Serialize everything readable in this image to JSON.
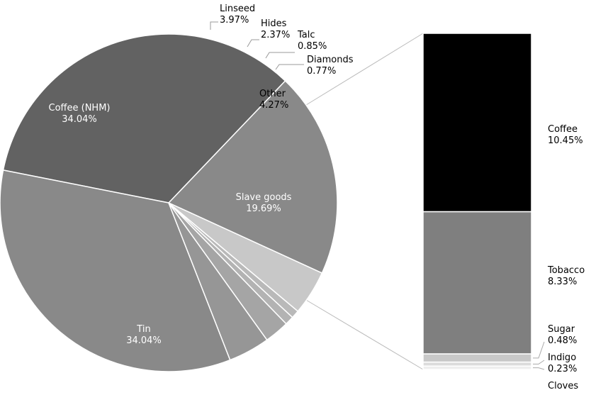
{
  "chart_data": [
    {
      "type": "pie",
      "colors": [
        "#6b6b6b",
        "#898989",
        "#ffffff"
      ],
      "slices": [
        {
          "label": "Slave goods",
          "value": 19.69,
          "percent_label": "19.69%",
          "color": "#898989",
          "label_color": "#ffffff"
        },
        {
          "label": "Tin",
          "value": 34.04,
          "percent_label": "34.04%",
          "color": "#626262",
          "label_color": "#ffffff"
        },
        {
          "label": "Coffee (NHM)",
          "value": 34.04,
          "percent_label": "34.04%",
          "color": "#898989",
          "label_color": "#ffffff"
        },
        {
          "label": "Linseed",
          "value": 3.97,
          "percent_label": "3.97%",
          "color": "#969696",
          "label_color": "#000000"
        },
        {
          "label": "Hides",
          "value": 2.37,
          "percent_label": "2.37%",
          "color": "#a5a5a5",
          "label_color": "#000000"
        },
        {
          "label": "Talc",
          "value": 0.85,
          "percent_label": "0.85%",
          "color": "#b3b3b3",
          "label_color": "#000000"
        },
        {
          "label": "Diamonds",
          "value": 0.77,
          "percent_label": "0.77%",
          "color": "#b9b9b9",
          "label_color": "#000000"
        },
        {
          "label": "Other",
          "value": 4.27,
          "percent_label": "4.27%",
          "color": "#c8c8c8",
          "label_color": "#000000"
        }
      ]
    },
    {
      "type": "bar",
      "stacked": true,
      "breakdown_of": "Slave goods",
      "segments": [
        {
          "label": "Coffee",
          "value": 10.45,
          "percent_label": "10.45%",
          "color": "#000000"
        },
        {
          "label": "Tobacco",
          "value": 8.33,
          "percent_label": "8.33%",
          "color": "#7f7f7f"
        },
        {
          "label": "Sugar",
          "value": 0.48,
          "percent_label": "0.48%",
          "color": "#c8c8c8"
        },
        {
          "label": "Indigo",
          "value": 0.23,
          "percent_label": "0.23%",
          "color": "#dcdcdc"
        },
        {
          "label": "Cloves",
          "value": 0.2,
          "percent_label": "",
          "color": "#eeeeee"
        }
      ]
    }
  ]
}
